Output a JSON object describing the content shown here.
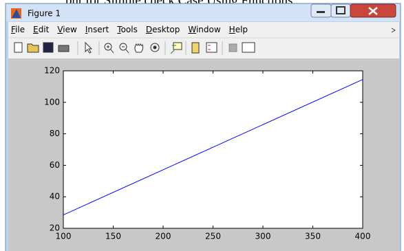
{
  "caption": "put for Simple check Case Using Functions",
  "window": {
    "title": "Figure 1",
    "menu": [
      "File",
      "Edit",
      "View",
      "Insert",
      "Tools",
      "Desktop",
      "Window",
      "Help"
    ]
  },
  "chart_data": {
    "type": "line",
    "x": [
      100,
      400
    ],
    "values": [
      28.5,
      114.5
    ],
    "color": "#0000ff",
    "xlim": [
      100,
      400
    ],
    "xticks": [
      100,
      150,
      200,
      250,
      300,
      350,
      400
    ],
    "ylim": [
      20,
      120
    ],
    "yticks": [
      20,
      40,
      60,
      80,
      100,
      120
    ]
  }
}
